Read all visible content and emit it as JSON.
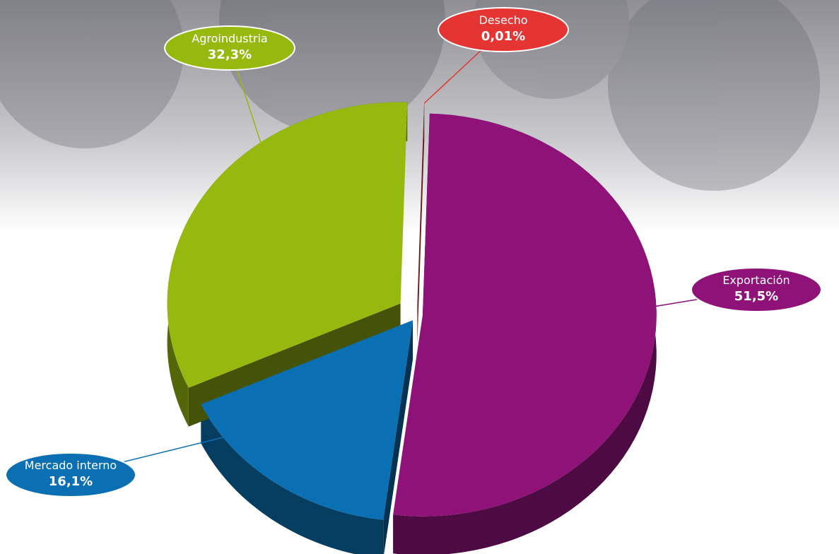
{
  "chart_data": {
    "type": "pie3d",
    "categories": [
      "Exportación",
      "Mercado interno",
      "Agroindustria",
      "Desecho"
    ],
    "values": [
      51.5,
      16.1,
      32.3,
      0.01
    ],
    "value_labels": [
      "51,5%",
      "16,1%",
      "32,3%",
      "0,01%"
    ],
    "colors": [
      "#8e1278",
      "#0b70b3",
      "#97b90f",
      "#e53532"
    ]
  }
}
